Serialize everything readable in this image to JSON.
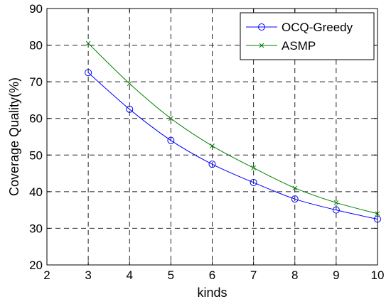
{
  "chart_data": {
    "type": "line",
    "title": "",
    "xlabel": "kinds",
    "ylabel": "Coverage Quality(%)",
    "xlim": [
      2,
      10
    ],
    "ylim": [
      20,
      90
    ],
    "xticks": [
      2,
      3,
      4,
      5,
      6,
      7,
      8,
      9,
      10
    ],
    "yticks": [
      20,
      30,
      40,
      50,
      60,
      70,
      80,
      90
    ],
    "grid": true,
    "legend_position": "top-right",
    "x": [
      3,
      4,
      5,
      6,
      7,
      8,
      9,
      10
    ],
    "series": [
      {
        "name": "OCQ-Greedy",
        "color": "#0000ff",
        "marker": "circle",
        "values": [
          72.5,
          62.5,
          54,
          47.5,
          42.5,
          38,
          35,
          32.5
        ]
      },
      {
        "name": "ASMP",
        "color": "#008000",
        "marker": "x",
        "values": [
          80.5,
          69.5,
          60,
          52.5,
          46.5,
          41,
          37,
          34
        ]
      }
    ]
  }
}
